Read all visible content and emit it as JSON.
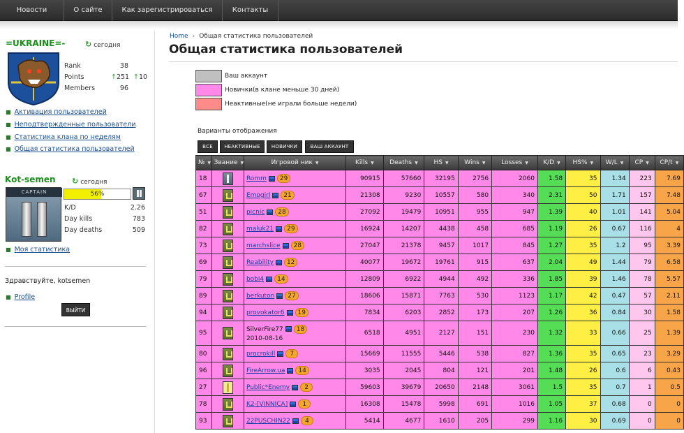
{
  "nav": {
    "items": [
      "Новости",
      "О сайте",
      "Как зарегистрироваться",
      "Контакты"
    ]
  },
  "clan": {
    "name": "=UKRAINE=-",
    "updated": "сегодня",
    "stats": {
      "rank_label": "Rank",
      "rank_value": "38",
      "points_label": "Points",
      "points_value": "251",
      "points_delta": "10",
      "members_label": "Members",
      "members_value": "96"
    }
  },
  "clan_links": [
    "Активация пользователей",
    "Неподтвержденные пользователи",
    "Статистика клана по неделям",
    "Общая статистика пользователей"
  ],
  "user": {
    "name": "Kot-semen",
    "updated": "сегодня",
    "rank_caption": "CAPTAIN",
    "progress_text": "56%",
    "progress_value": 0.56,
    "kd_label": "K/D",
    "kd_value": "2.26",
    "day_kills_label": "Day kills",
    "day_kills_value": "783",
    "day_deaths_label": "Day deaths",
    "day_deaths_value": "509",
    "my_stats_link": "Моя статистика",
    "greeting": "Здравствуйте, kotsemen",
    "profile_link": "Profile",
    "logout_label": "ВЫЙТИ"
  },
  "breadcrumb": {
    "home": "Home",
    "current": "Общая статистика пользователей"
  },
  "page_title": "Общая статистика пользователей",
  "legend": [
    {
      "label": "Ваш аккаунт",
      "color": "#c0c0c0"
    },
    {
      "label": "Новички(в клане меньше 30 дней)",
      "color": "#ff88e8"
    },
    {
      "label": "Неактивные(не играли больше недели)",
      "color": "#ff8a8a"
    }
  ],
  "view_options": {
    "title": "Варианты отображения",
    "buttons": [
      "ВСЕ",
      "НЕАКТИВНЫЕ",
      "НОВИЧКИ",
      "ВАШ АККАУНТ"
    ]
  },
  "table": {
    "headers": [
      "№",
      "Звание",
      "Игровой ник",
      "Kills",
      "Deaths",
      "HS",
      "Wins",
      "Losses",
      "K/D",
      "HS%",
      "W/L",
      "CP",
      "CP/t"
    ],
    "rows": [
      {
        "num": "18",
        "rank": "bars",
        "nick": "Romm",
        "level": "29",
        "kills": "90915",
        "deaths": "57660",
        "hs": "32195",
        "wins": "2756",
        "losses": "2060",
        "kd": "1.58",
        "hsp": "35",
        "wl": "1.34",
        "cp": "223",
        "cpt": "7.69"
      },
      {
        "num": "67",
        "rank": "chev",
        "nick": "Emogirl",
        "level": "21",
        "kills": "21308",
        "deaths": "9230",
        "hs": "10557",
        "wins": "580",
        "losses": "340",
        "kd": "2.31",
        "hsp": "50",
        "wl": "1.71",
        "cp": "157",
        "cpt": "7.48"
      },
      {
        "num": "51",
        "rank": "chev",
        "nick": "picnic",
        "level": "28",
        "kills": "27092",
        "deaths": "19479",
        "hs": "10951",
        "wins": "955",
        "losses": "947",
        "kd": "1.39",
        "hsp": "40",
        "wl": "1.01",
        "cp": "141",
        "cpt": "5.04"
      },
      {
        "num": "82",
        "rank": "chev",
        "nick": "maluk21",
        "level": "29",
        "kills": "16924",
        "deaths": "14207",
        "hs": "4438",
        "wins": "458",
        "losses": "685",
        "kd": "1.19",
        "hsp": "26",
        "wl": "0.67",
        "cp": "116",
        "cpt": "4"
      },
      {
        "num": "73",
        "rank": "chev",
        "nick": "marchslice",
        "level": "28",
        "kills": "27047",
        "deaths": "21378",
        "hs": "9457",
        "wins": "1017",
        "losses": "845",
        "kd": "1.27",
        "hsp": "35",
        "wl": "1.2",
        "cp": "95",
        "cpt": "3.39"
      },
      {
        "num": "69",
        "rank": "chev",
        "nick": "Reability",
        "level": "12",
        "kills": "40077",
        "deaths": "19672",
        "hs": "19761",
        "wins": "915",
        "losses": "637",
        "kd": "2.04",
        "hsp": "49",
        "wl": "1.44",
        "cp": "79",
        "cpt": "6.58"
      },
      {
        "num": "79",
        "rank": "chev",
        "nick": "bobi4",
        "level": "14",
        "kills": "12809",
        "deaths": "6922",
        "hs": "4944",
        "wins": "492",
        "losses": "336",
        "kd": "1.85",
        "hsp": "39",
        "wl": "1.46",
        "cp": "78",
        "cpt": "5.57"
      },
      {
        "num": "89",
        "rank": "chev",
        "nick": "berkuton",
        "level": "27",
        "kills": "18606",
        "deaths": "15871",
        "hs": "7763",
        "wins": "530",
        "losses": "1123",
        "kd": "1.17",
        "hsp": "42",
        "wl": "0.47",
        "cp": "57",
        "cpt": "2.11"
      },
      {
        "num": "94",
        "rank": "chev",
        "nick": "provokator6",
        "level": "19",
        "kills": "7834",
        "deaths": "6203",
        "hs": "2852",
        "wins": "173",
        "losses": "207",
        "kd": "1.26",
        "hsp": "36",
        "wl": "0.84",
        "cp": "30",
        "cpt": "1.58"
      },
      {
        "num": "95",
        "rank": "chev",
        "nick": "SilverFire77",
        "level": "18",
        "date": "2010-08-16",
        "linked": false,
        "kills": "6518",
        "deaths": "4951",
        "hs": "2127",
        "wins": "151",
        "losses": "230",
        "kd": "1.32",
        "hsp": "33",
        "wl": "0.66",
        "cp": "25",
        "cpt": "1.39"
      },
      {
        "num": "80",
        "rank": "chev",
        "nick": "procrokill",
        "level": "7",
        "kills": "15669",
        "deaths": "11555",
        "hs": "5446",
        "wins": "538",
        "losses": "827",
        "kd": "1.36",
        "hsp": "35",
        "wl": "0.65",
        "cp": "23",
        "cpt": "3.29"
      },
      {
        "num": "96",
        "rank": "chev",
        "nick": "FireArrow.ua",
        "level": "14",
        "kills": "3035",
        "deaths": "2045",
        "hs": "804",
        "wins": "121",
        "losses": "201",
        "kd": "1.48",
        "hsp": "26",
        "wl": "0.6",
        "cp": "6",
        "cpt": "0.43"
      },
      {
        "num": "27",
        "rank": "gold",
        "nick": "Public*Enemy",
        "level": "2",
        "kills": "59603",
        "deaths": "39679",
        "hs": "20650",
        "wins": "2148",
        "losses": "3061",
        "kd": "1.5",
        "hsp": "35",
        "wl": "0.7",
        "cp": "1",
        "cpt": "0.5"
      },
      {
        "num": "78",
        "rank": "chev",
        "nick": "K2-[VINNICA]",
        "level": "1",
        "kills": "16308",
        "deaths": "15478",
        "hs": "5998",
        "wins": "691",
        "losses": "1016",
        "kd": "1.05",
        "hsp": "37",
        "wl": "0.68",
        "cp": "0",
        "cpt": "0"
      },
      {
        "num": "93",
        "rank": "chev",
        "nick": "22PUSCHIN22",
        "level": "4",
        "kills": "5414",
        "deaths": "4677",
        "hs": "1610",
        "wins": "205",
        "losses": "299",
        "kd": "1.16",
        "hsp": "30",
        "wl": "0.69",
        "cp": "0",
        "cpt": "0"
      }
    ]
  }
}
